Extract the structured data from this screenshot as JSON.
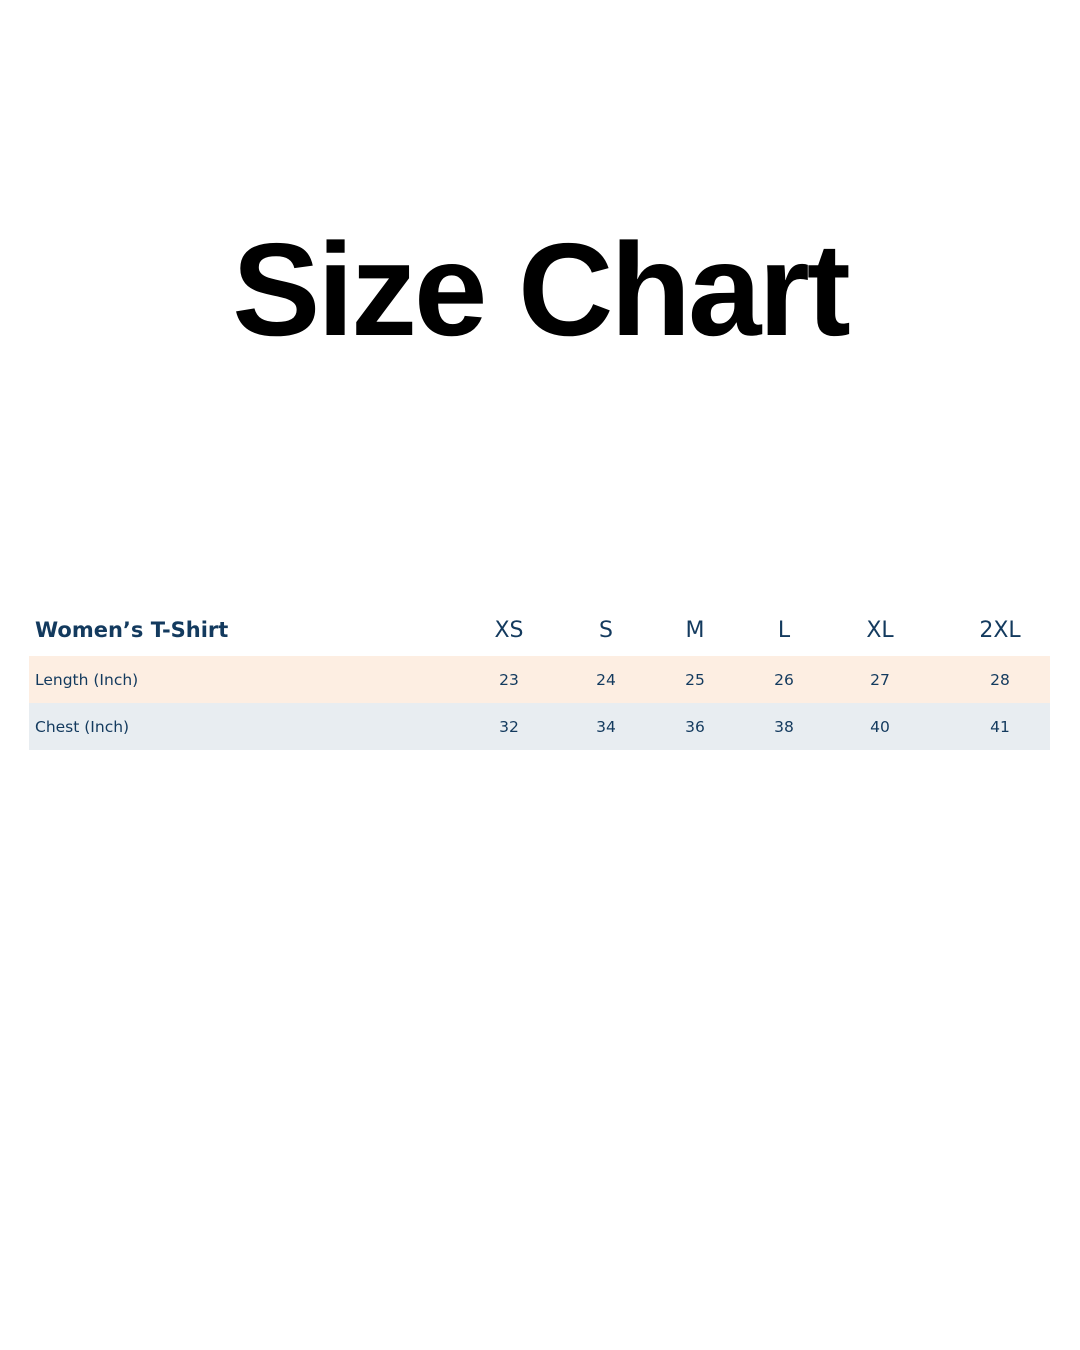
{
  "title": "Size Chart",
  "table": {
    "header_label": "Women’s T-Shirt",
    "sizes": [
      "XS",
      "S",
      "M",
      "L",
      "XL",
      "2XL"
    ],
    "rows": [
      {
        "label": "Length (Inch)",
        "values": [
          "23",
          "24",
          "25",
          "26",
          "27",
          "28"
        ]
      },
      {
        "label": "Chest (Inch)",
        "values": [
          "32",
          "34",
          "36",
          "38",
          "40",
          "41"
        ]
      }
    ]
  },
  "colors": {
    "text": "#133a5e",
    "row_1_bg": "#fdeee2",
    "row_2_bg": "#e8edf1"
  }
}
